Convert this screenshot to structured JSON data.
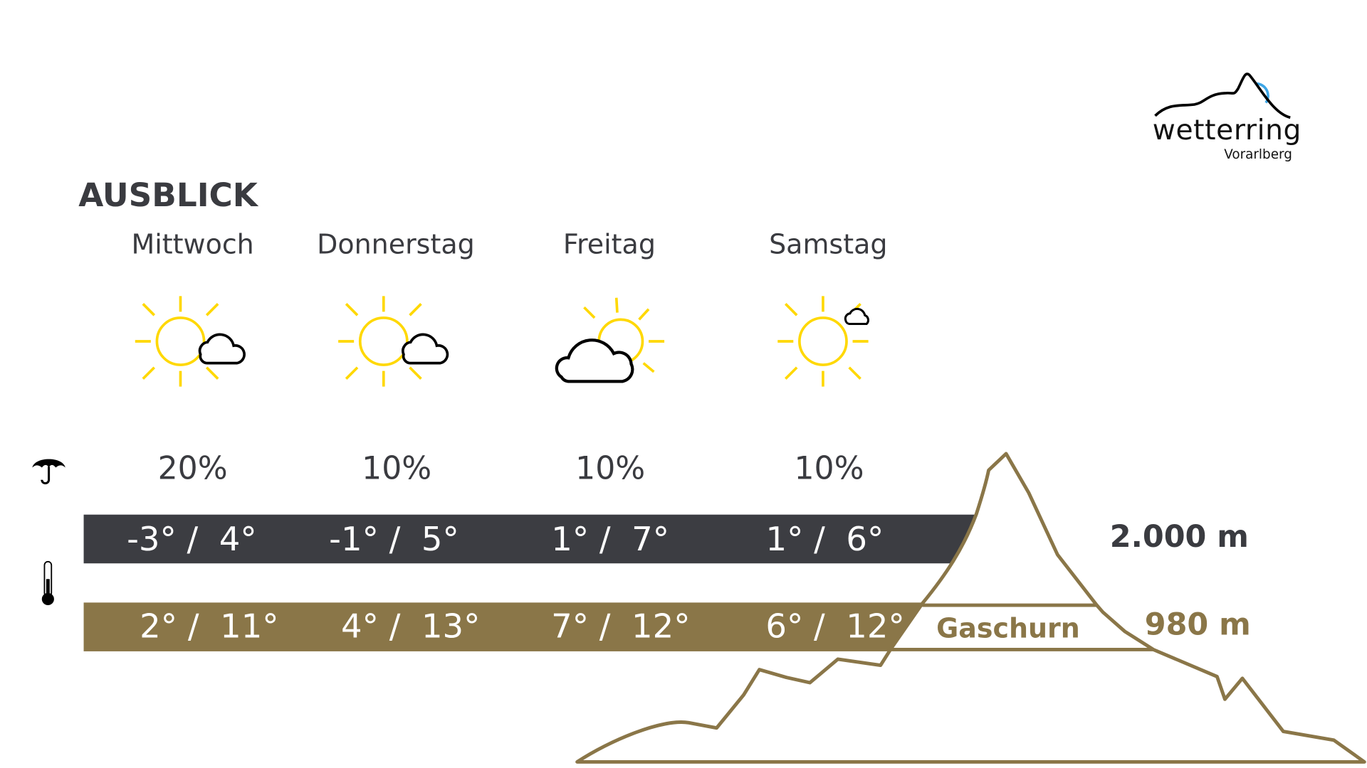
{
  "title": "AUSBLICK",
  "logo": {
    "name": "wetterring",
    "sub": "Vorarlberg"
  },
  "colors": {
    "dark": "#3c3d42",
    "gold": "#8a7648",
    "sun": "#ffd800",
    "logo_blue": "#3ea6e6"
  },
  "icons": {
    "rain": "umbrella-icon",
    "temperature": "thermometer-icon"
  },
  "days": [
    {
      "name": "Mittwoch",
      "icon": "sun-with-small-cloud",
      "rain": "20%",
      "mountain": "-3° /  4°",
      "valley": "2° /  11°"
    },
    {
      "name": "Donnerstag",
      "icon": "sun-with-small-cloud",
      "rain": "10%",
      "mountain": "-1° /  5°",
      "valley": "4° /  13°"
    },
    {
      "name": "Freitag",
      "icon": "cloud-over-sun",
      "rain": "10%",
      "mountain": "1° /  7°",
      "valley": "7° /  12°"
    },
    {
      "name": "Samstag",
      "icon": "sun-with-tiny-cloud",
      "rain": "10%",
      "mountain": "1° /  6°",
      "valley": "6° /  12°"
    }
  ],
  "mountain_altitude": "2.000 m",
  "valley_altitude": "980 m",
  "valley_location": "Gaschurn"
}
